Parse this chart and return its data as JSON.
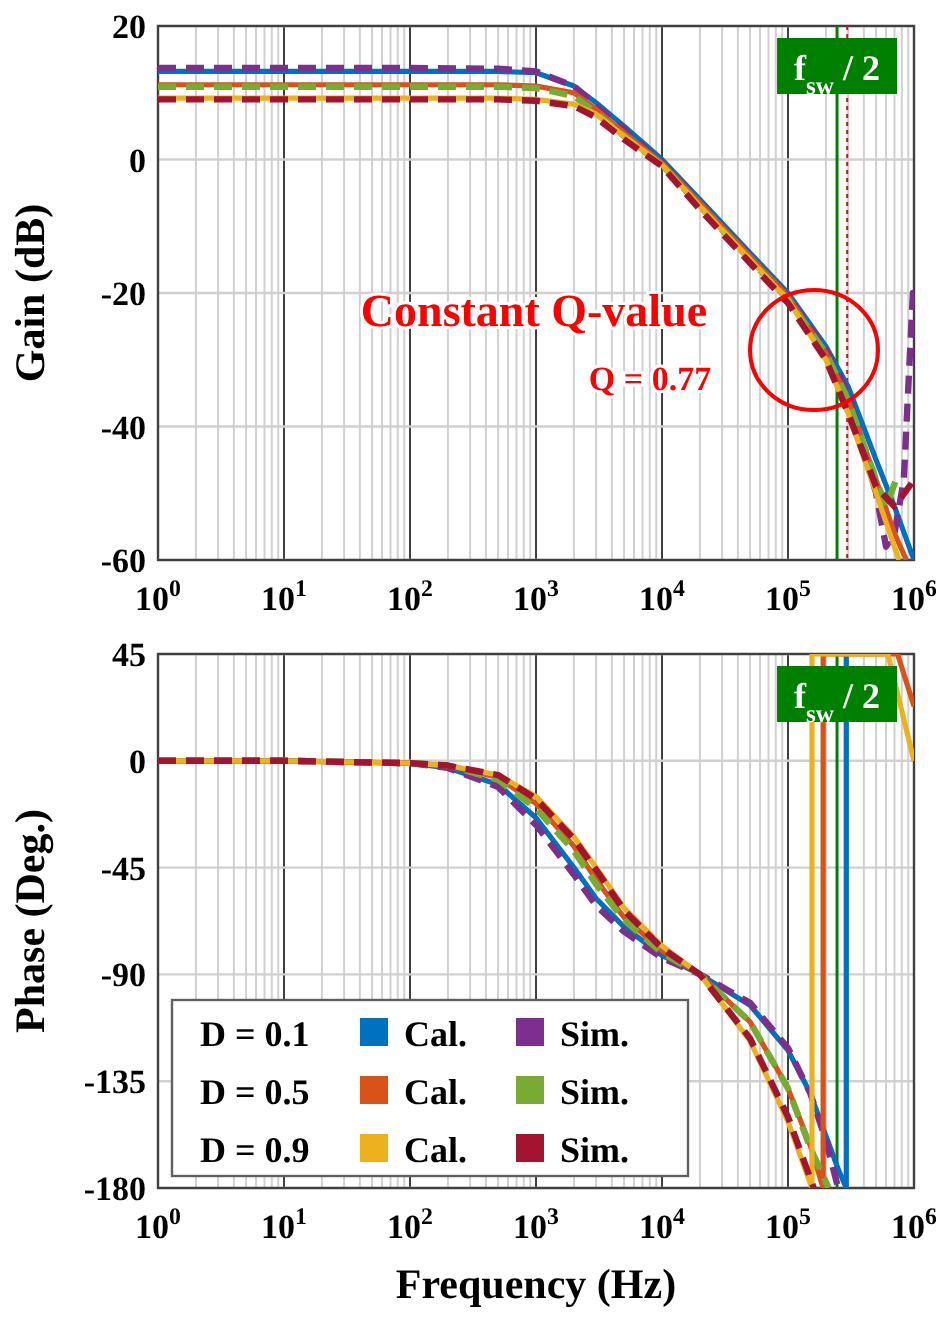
{
  "chart_data": [
    {
      "type": "line",
      "ylabel": "Gain (dB)",
      "log": "x",
      "grid": true,
      "legend": false,
      "xlim": [
        1,
        1000000
      ],
      "ylim": [
        -60,
        20
      ],
      "yticks": [
        -60,
        -40,
        -20,
        0,
        20
      ],
      "xticks": [
        {
          "value": 1,
          "label": "10$^{0}$"
        },
        {
          "value": 2,
          "label": null
        },
        {
          "value": 3,
          "label": null
        },
        {
          "value": 4,
          "label": null
        },
        {
          "value": 5,
          "label": null
        },
        {
          "value": 6,
          "label": null
        },
        {
          "value": 7,
          "label": null
        },
        {
          "value": 8,
          "label": null
        },
        {
          "value": 9,
          "label": null
        },
        {
          "value": 10,
          "label": "10$^{1}$"
        },
        {
          "value": 20,
          "label": null
        },
        {
          "value": 30,
          "label": null
        },
        {
          "value": 40,
          "label": null
        },
        {
          "value": 50,
          "label": null
        },
        {
          "value": 60,
          "label": null
        },
        {
          "value": 70,
          "label": null
        },
        {
          "value": 80,
          "label": null
        },
        {
          "value": 90,
          "label": null
        },
        {
          "value": 100,
          "label": "10$^{2}$"
        },
        {
          "value": 200,
          "label": null
        },
        {
          "value": 300,
          "label": null
        },
        {
          "value": 400,
          "label": null
        },
        {
          "value": 500,
          "label": null
        },
        {
          "value": 600,
          "label": null
        },
        {
          "value": 700,
          "label": null
        },
        {
          "value": 800,
          "label": null
        },
        {
          "value": 900,
          "label": null
        },
        {
          "value": 1000,
          "label": "10$^{3}$"
        },
        {
          "value": 2000,
          "label": null
        },
        {
          "value": 3000,
          "label": null
        },
        {
          "value": 4000,
          "label": null
        },
        {
          "value": 5000,
          "label": null
        },
        {
          "value": 6000,
          "label": null
        },
        {
          "value": 7000,
          "label": null
        },
        {
          "value": 8000,
          "label": null
        },
        {
          "value": 9000,
          "label": null
        },
        {
          "value": 10000,
          "label": "10$^{4}$"
        },
        {
          "value": 20000,
          "label": null
        },
        {
          "value": 30000,
          "label": null
        },
        {
          "value": 40000,
          "label": null
        },
        {
          "value": 50000,
          "label": null
        },
        {
          "value": 60000,
          "label": null
        },
        {
          "value": 70000,
          "label": null
        },
        {
          "value": 80000,
          "label": null
        },
        {
          "value": 90000,
          "label": null
        },
        {
          "value": 100000,
          "label": "10$^{5}$"
        },
        {
          "value": 200000,
          "label": null
        },
        {
          "value": 300000,
          "label": null
        },
        {
          "value": 400000,
          "label": null
        },
        {
          "value": 500000,
          "label": null
        },
        {
          "value": 600000,
          "label": null
        },
        {
          "value": 700000,
          "label": null
        },
        {
          "value": 800000,
          "label": null
        },
        {
          "value": 900000,
          "label": null
        },
        {
          "value": 1000000,
          "label": "10$^{6}$"
        }
      ],
      "annotations": [
        "Constant Q-value",
        "Q = 0.77"
      ],
      "ref_lines": [
        {
          "axis": "x",
          "value": 245000,
          "label": "f$_{sw}$ / 2",
          "color": "#008000"
        },
        {
          "axis": "x",
          "value": 295000,
          "color": "#ff0000",
          "line_style": "dotted"
        }
      ],
      "series": [
        {
          "color": "#0070c0",
          "line_style": "solid",
          "x": [
            1,
            10,
            100,
            500,
            1000,
            2000,
            3000,
            5000,
            10000,
            20000,
            50000,
            100000,
            200000,
            300000,
            500000,
            700000,
            1000000
          ],
          "values": [
            13.2,
            13.2,
            13.2,
            13.2,
            13,
            11,
            8.5,
            5,
            0,
            -6,
            -14,
            -20,
            -28,
            -34,
            -45,
            -52,
            -60
          ]
        },
        {
          "color": "#7e2f8e",
          "line_style": "dashed",
          "x": [
            1,
            10,
            100,
            500,
            1000,
            2000,
            3000,
            5000,
            10000,
            20000,
            50000,
            100000,
            200000,
            300000,
            500000,
            600000,
            700000,
            830000,
            980000,
            1000000
          ],
          "values": [
            13.7,
            13.7,
            13.7,
            13.6,
            13.2,
            11,
            8,
            4.5,
            -0.5,
            -6.5,
            -14.5,
            -20.5,
            -28.5,
            -35,
            -50,
            -58,
            -56,
            -48,
            -20,
            -20
          ]
        },
        {
          "color": "#d95319",
          "line_style": "solid",
          "x": [
            1,
            10,
            100,
            500,
            1000,
            2000,
            3000,
            5000,
            10000,
            20000,
            50000,
            100000,
            200000,
            300000,
            500000,
            700000,
            870000
          ],
          "values": [
            11.2,
            11.2,
            11.2,
            11.2,
            11,
            10,
            7.5,
            4,
            -0.5,
            -6.5,
            -14.5,
            -20.5,
            -29,
            -36,
            -48,
            -56,
            -60
          ]
        },
        {
          "color": "#77ac30",
          "line_style": "dashed",
          "x": [
            1,
            10,
            100,
            500,
            1000,
            2000,
            3000,
            5000,
            10000,
            20000,
            50000,
            100000,
            200000,
            300000,
            500000,
            600000,
            720000
          ],
          "values": [
            10.9,
            10.9,
            10.9,
            10.9,
            10.7,
            9.5,
            7,
            3.5,
            -0.8,
            -7,
            -15,
            -21,
            -29,
            -36,
            -48,
            -52,
            -48
          ]
        },
        {
          "color": "#edb120",
          "line_style": "solid",
          "x": [
            1,
            10,
            100,
            500,
            1000,
            2000,
            3000,
            5000,
            10000,
            20000,
            50000,
            100000,
            200000,
            300000,
            500000,
            760000
          ],
          "values": [
            9.2,
            9.2,
            9.2,
            9.2,
            9,
            8.3,
            6.8,
            3.5,
            -0.8,
            -7,
            -15,
            -21,
            -30,
            -38,
            -50,
            -60
          ]
        },
        {
          "color": "#a2142f",
          "line_style": "dashed",
          "x": [
            1,
            10,
            100,
            500,
            1000,
            2000,
            3000,
            5000,
            10000,
            20000,
            50000,
            100000,
            200000,
            300000,
            500000,
            700000,
            1000000
          ],
          "values": [
            9,
            9,
            9,
            9,
            8.8,
            8,
            6.3,
            3,
            -1,
            -7.5,
            -15.5,
            -21.5,
            -30,
            -38,
            -49,
            -52,
            -48
          ]
        }
      ]
    },
    {
      "type": "line",
      "ylabel": "Phase (Deg.)",
      "xlabel": "Frequency (Hz)",
      "log": "x",
      "grid": true,
      "legend": "bottom left",
      "xlim": [
        1,
        1000000
      ],
      "ylim": [
        -180,
        45
      ],
      "yticks": [
        -180,
        -135,
        -90,
        -45,
        0,
        45
      ],
      "xticks": [
        {
          "value": 1,
          "label": "10$^{0}$"
        },
        {
          "value": 2,
          "label": null
        },
        {
          "value": 3,
          "label": null
        },
        {
          "value": 4,
          "label": null
        },
        {
          "value": 5,
          "label": null
        },
        {
          "value": 6,
          "label": null
        },
        {
          "value": 7,
          "label": null
        },
        {
          "value": 8,
          "label": null
        },
        {
          "value": 9,
          "label": null
        },
        {
          "value": 10,
          "label": "10$^{1}$"
        },
        {
          "value": 20,
          "label": null
        },
        {
          "value": 30,
          "label": null
        },
        {
          "value": 40,
          "label": null
        },
        {
          "value": 50,
          "label": null
        },
        {
          "value": 60,
          "label": null
        },
        {
          "value": 70,
          "label": null
        },
        {
          "value": 80,
          "label": null
        },
        {
          "value": 90,
          "label": null
        },
        {
          "value": 100,
          "label": "10$^{2}$"
        },
        {
          "value": 200,
          "label": null
        },
        {
          "value": 300,
          "label": null
        },
        {
          "value": 400,
          "label": null
        },
        {
          "value": 500,
          "label": null
        },
        {
          "value": 600,
          "label": null
        },
        {
          "value": 700,
          "label": null
        },
        {
          "value": 800,
          "label": null
        },
        {
          "value": 900,
          "label": null
        },
        {
          "value": 1000,
          "label": "10$^{3}$"
        },
        {
          "value": 2000,
          "label": null
        },
        {
          "value": 3000,
          "label": null
        },
        {
          "value": 4000,
          "label": null
        },
        {
          "value": 5000,
          "label": null
        },
        {
          "value": 6000,
          "label": null
        },
        {
          "value": 7000,
          "label": null
        },
        {
          "value": 8000,
          "label": null
        },
        {
          "value": 9000,
          "label": null
        },
        {
          "value": 10000,
          "label": "10$^{4}$"
        },
        {
          "value": 20000,
          "label": null
        },
        {
          "value": 30000,
          "label": null
        },
        {
          "value": 40000,
          "label": null
        },
        {
          "value": 50000,
          "label": null
        },
        {
          "value": 60000,
          "label": null
        },
        {
          "value": 70000,
          "label": null
        },
        {
          "value": 80000,
          "label": null
        },
        {
          "value": 90000,
          "label": null
        },
        {
          "value": 100000,
          "label": "10$^{5}$"
        },
        {
          "value": 200000,
          "label": null
        },
        {
          "value": 300000,
          "label": null
        },
        {
          "value": 400000,
          "label": null
        },
        {
          "value": 500000,
          "label": null
        },
        {
          "value": 600000,
          "label": null
        },
        {
          "value": 700000,
          "label": null
        },
        {
          "value": 800000,
          "label": null
        },
        {
          "value": 900000,
          "label": null
        },
        {
          "value": 1000000,
          "label": "10$^{6}$"
        }
      ],
      "annotations": [
        "D = 0.1",
        "D = 0.5",
        "D = 0.9"
      ],
      "ref_lines": [
        {
          "axis": "x",
          "value": 245000,
          "label": "f$_{sw}$ / 2",
          "color": "#008000"
        }
      ],
      "series": [
        {
          "name": "Cal.",
          "color": "#0070c0",
          "line_style": "solid",
          "x": [
            1,
            10,
            100,
            200,
            500,
            1000,
            2000,
            3000,
            5000,
            10000,
            20000,
            50000,
            100000,
            150000,
            200000,
            250000,
            290000,
            290000
          ],
          "values": [
            0,
            0,
            -1,
            -3,
            -10,
            -24,
            -45,
            -58,
            -70,
            -82,
            -90,
            -103,
            -122,
            -140,
            -158,
            -172,
            -180,
            45
          ]
        },
        {
          "name": "Sim.",
          "color": "#7e2f8e",
          "line_style": "dashed",
          "x": [
            1,
            10,
            100,
            200,
            500,
            1000,
            2000,
            3000,
            5000,
            10000,
            20000,
            50000,
            100000,
            150000,
            200000,
            250000
          ],
          "values": [
            0,
            0,
            -1,
            -3,
            -11,
            -27,
            -48,
            -61,
            -72,
            -83,
            -90,
            -102,
            -121,
            -140,
            -160,
            -180
          ]
        },
        {
          "name": "Cal.",
          "color": "#d95319",
          "line_style": "solid",
          "x": [
            1,
            10,
            100,
            200,
            500,
            1000,
            2000,
            3000,
            5000,
            10000,
            20000,
            50000,
            100000,
            150000,
            190000,
            190000,
            740000,
            1000000
          ],
          "values": [
            0,
            0,
            -1,
            -2,
            -7,
            -18,
            -36,
            -50,
            -66,
            -80,
            -90,
            -110,
            -138,
            -162,
            -180,
            45,
            45,
            23
          ]
        },
        {
          "name": "Sim.",
          "color": "#77ac30",
          "line_style": "dashed",
          "x": [
            1,
            10,
            100,
            200,
            500,
            1000,
            2000,
            3000,
            5000,
            10000,
            20000,
            50000,
            100000,
            150000,
            210000
          ],
          "values": [
            0,
            0,
            -1,
            -2,
            -8,
            -20,
            -38,
            -52,
            -67,
            -81,
            -90,
            -110,
            -138,
            -163,
            -180
          ]
        },
        {
          "name": "Cal.",
          "color": "#edb120",
          "line_style": "solid",
          "x": [
            1,
            10,
            100,
            200,
            500,
            1000,
            2000,
            3000,
            5000,
            10000,
            20000,
            50000,
            100000,
            155000,
            155000,
            620000,
            1000000
          ],
          "values": [
            0,
            0,
            -1,
            -2,
            -6,
            -15,
            -32,
            -45,
            -62,
            -78,
            -90,
            -118,
            -152,
            -180,
            45,
            45,
            0
          ]
        },
        {
          "name": "Sim.",
          "color": "#a2142f",
          "line_style": "dashed",
          "x": [
            1,
            10,
            100,
            200,
            500,
            1000,
            2000,
            3000,
            5000,
            10000,
            20000,
            50000,
            100000,
            160000
          ],
          "values": [
            0,
            0,
            -1,
            -2,
            -6,
            -16,
            -33,
            -46,
            -63,
            -79,
            -90,
            -117,
            -150,
            -180
          ]
        }
      ]
    }
  ]
}
